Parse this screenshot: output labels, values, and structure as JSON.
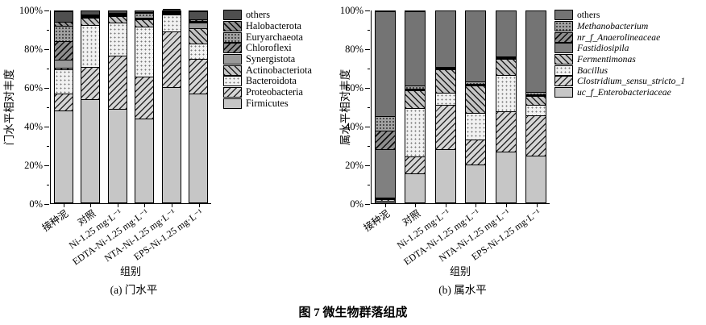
{
  "figure": {
    "caption": "图 7  微生物群落组成",
    "background_color": "#ffffff",
    "axis_color": "#000000"
  },
  "chart_data": [
    {
      "id": "phylum-level",
      "type": "bar",
      "stacked": true,
      "units": "percent",
      "subtitle": "(a) 门水平",
      "xlabel": "组别",
      "ylabel": "门水平相对丰度",
      "ylim": [
        0,
        100
      ],
      "ytick_labels": [
        "0%",
        "20%",
        "40%",
        "60%",
        "80%",
        "100%"
      ],
      "minor_ticks": [
        10,
        30,
        50,
        70,
        90
      ],
      "grid": false,
      "legend_position": "outside-right-top",
      "categories": [
        "接种泥",
        "对照",
        "Ni-1.25 mg·L⁻¹",
        "EDTA-Ni-1.25 mg·L⁻¹",
        "NTA-Ni-1.25 mg·L⁻¹",
        "EPS-Ni-1.25 mg·L⁻¹"
      ],
      "series": [
        {
          "name": "Firmicutes",
          "pattern": "solid-light",
          "italic": false,
          "values": [
            48,
            54,
            49,
            44,
            60.5,
            57
          ]
        },
        {
          "name": "Proteobacteria",
          "pattern": "hatch-fwd-light",
          "italic": false,
          "values": [
            9,
            17,
            28,
            22,
            29,
            18
          ]
        },
        {
          "name": "Bacteroidota",
          "pattern": "dots-light",
          "italic": false,
          "values": [
            12.5,
            22,
            17,
            26,
            9,
            8
          ]
        },
        {
          "name": "Actinobacteriota",
          "pattern": "hatch-back-light",
          "italic": false,
          "values": [
            1,
            3.5,
            3.5,
            4,
            0.2,
            8
          ]
        },
        {
          "name": "Synergistota",
          "pattern": "solid-mid",
          "italic": false,
          "values": [
            4,
            0.3,
            0.3,
            0.2,
            0.1,
            3
          ]
        },
        {
          "name": "Chloroflexi",
          "pattern": "hatch-fwd-dark",
          "italic": false,
          "values": [
            10,
            0.2,
            0.3,
            0.3,
            0.1,
            0.5
          ]
        },
        {
          "name": "Euryarchaeota",
          "pattern": "dots-dark",
          "italic": false,
          "values": [
            8,
            0.5,
            0.4,
            2.5,
            0.3,
            0.5
          ]
        },
        {
          "name": "Halobacterota",
          "pattern": "hatch-back-dark",
          "italic": false,
          "values": [
            2,
            0.5,
            0.5,
            0.2,
            0.3,
            1
          ]
        },
        {
          "name": "others",
          "pattern": "solid-dark",
          "italic": false,
          "values": [
            5.5,
            2,
            1,
            0.8,
            0.5,
            4
          ]
        }
      ]
    },
    {
      "id": "genus-level",
      "type": "bar",
      "stacked": true,
      "units": "percent",
      "subtitle": "(b) 属水平",
      "xlabel": "组别",
      "ylabel": "属水平相对丰度",
      "ylim": [
        0,
        100
      ],
      "ytick_labels": [
        "0%",
        "20%",
        "40%",
        "60%",
        "80%",
        "100%"
      ],
      "minor_ticks": [
        10,
        30,
        50,
        70,
        90
      ],
      "grid": false,
      "legend_position": "outside-right-top",
      "categories": [
        "接种泥",
        "对照",
        "Ni-1.25 mg·L⁻¹",
        "EDTA-Ni-1.25 mg·L⁻¹",
        "NTA-Ni-1.25 mg·L⁻¹",
        "EPS-Ni-1.25 mg·L⁻¹"
      ],
      "series": [
        {
          "name": "uc_f_Enterobacteriaceae",
          "pattern": "solid-light",
          "italic": true,
          "values": [
            1,
            15,
            28,
            20,
            26.5,
            24.5
          ]
        },
        {
          "name": "Clostridium_sensu_stricto_1",
          "pattern": "hatch-fwd-light",
          "italic": true,
          "values": [
            0.8,
            9,
            23,
            13,
            21,
            21
          ]
        },
        {
          "name": "Bacillus",
          "pattern": "dots-light",
          "italic": true,
          "values": [
            0.5,
            25.5,
            6.5,
            14,
            19,
            5.5
          ]
        },
        {
          "name": "Fermentimonas",
          "pattern": "hatch-back-light",
          "italic": true,
          "values": [
            0.2,
            9,
            12,
            14,
            8.5,
            4.5
          ]
        },
        {
          "name": "Fastidiosipila",
          "pattern": "solid-mid2",
          "italic": true,
          "values": [
            25,
            0.5,
            0.3,
            0.3,
            0.2,
            0.3
          ]
        },
        {
          "name": "nr_f_Anaerolineaceae",
          "pattern": "hatch-fwd-dark",
          "italic": true,
          "values": [
            10,
            0.5,
            0.3,
            0.3,
            0.3,
            0.2
          ]
        },
        {
          "name": "Methanobacterium",
          "pattern": "dots-dark",
          "italic": true,
          "values": [
            7.5,
            1.5,
            0.4,
            1.4,
            0.5,
            1.5
          ]
        },
        {
          "name": "others",
          "pattern": "solid-dark2",
          "italic": false,
          "values": [
            55,
            39,
            29.5,
            37,
            24,
            42.5
          ]
        }
      ]
    }
  ]
}
